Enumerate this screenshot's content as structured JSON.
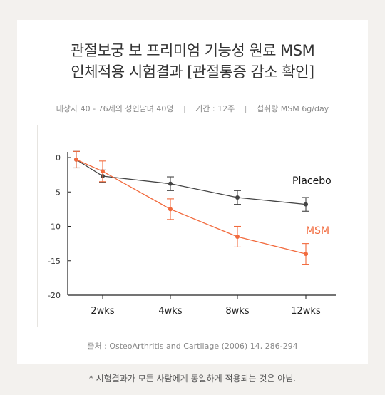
{
  "title": {
    "line1": "관절보궁 보 프리미엄 기능성 원료 MSM",
    "line2": "인체적용 시험결과 [관절통증 감소 확인]"
  },
  "subtitle": {
    "subjects": "대상자 40 - 76세의 성인남녀 40명",
    "period": "기간 : 12주",
    "intake": "섭취량 MSM 6g/day",
    "separator": "|"
  },
  "source": "출처 : OsteoArthritis and Cartilage (2006) 14, 286-294",
  "footnote": "* 시험결과가 모든 사람에게 동일하게 적용되는 것은 아님.",
  "chart_data": {
    "type": "line",
    "x": [
      0,
      2,
      4,
      8,
      12
    ],
    "categories": [
      "2wks",
      "4wks",
      "8wks",
      "12wks"
    ],
    "ylim": [
      -20,
      0
    ],
    "yticks": [
      0,
      -5,
      -10,
      -15,
      -20
    ],
    "grid": false,
    "series": [
      {
        "name": "Placebo",
        "color": "#444444",
        "values": [
          -0.3,
          -2.7,
          -3.8,
          -5.8,
          -6.8
        ],
        "errors": [
          1.2,
          0.9,
          1.0,
          1.0,
          1.0
        ]
      },
      {
        "name": "MSM",
        "color": "#f26a3d",
        "values": [
          -0.3,
          -2.0,
          -7.5,
          -11.5,
          -14.0
        ],
        "errors": [
          1.2,
          1.5,
          1.5,
          1.5,
          1.5
        ]
      }
    ]
  }
}
